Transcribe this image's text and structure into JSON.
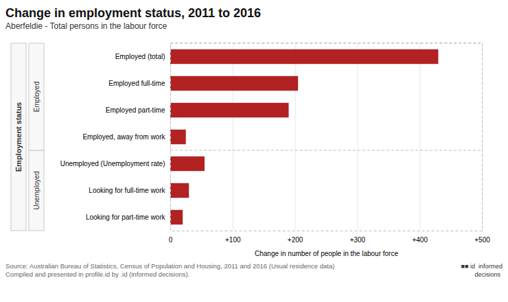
{
  "chart_data": {
    "type": "bar",
    "orientation": "horizontal",
    "title": "Change in employment status, 2011 to 2016",
    "subtitle": "Aberfeldie - Total persons in the labour force",
    "xlabel": "Change in number of people in the labour force",
    "ylabel": "Employment status",
    "categories": [
      "Looking for part-time work",
      "Looking for full-time work",
      "Unemployed (Unemployment rate)",
      "Employed, away from work",
      "Employed part-time",
      "Employed full-time",
      "Employed (total)"
    ],
    "values": [
      20,
      30,
      55,
      25,
      190,
      205,
      430
    ],
    "color": "#b22222",
    "groups": [
      {
        "name": "Unemployed",
        "categories": [
          "Looking for part-time work",
          "Looking for full-time work",
          "Unemployed (Unemployment rate)"
        ]
      },
      {
        "name": "Employed",
        "categories": [
          "Employed, away from work",
          "Employed part-time",
          "Employed full-time",
          "Employed (total)"
        ]
      }
    ],
    "xlim": [
      0,
      500
    ],
    "xticks": [
      0,
      {
        "value": 100,
        "label": "+100"
      },
      {
        "value": 200,
        "label": "+200"
      },
      {
        "value": 300,
        "label": "+300"
      },
      {
        "value": 400,
        "label": "+400"
      },
      {
        "value": 500,
        "label": "+500"
      }
    ],
    "grid": true,
    "source": "Source: Australian Bureau of Statistics, Census of Population and Housing, 2011 and 2016 (Usual residence data)\nCompiled and presented in profile.id by .id (informed decisions).",
    "annotations": [
      "■■ id  informed\n        decisions"
    ]
  }
}
